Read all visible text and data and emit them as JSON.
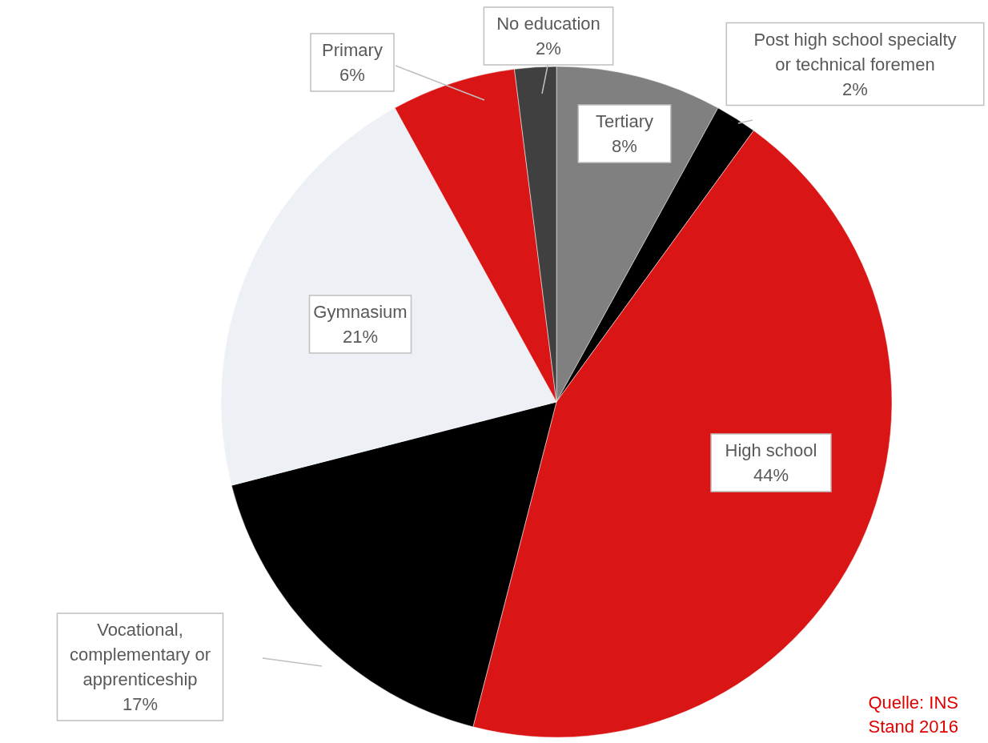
{
  "chart_data": {
    "type": "pie",
    "categories": [
      "Tertiary",
      "Post high school specialty or technical foremen",
      "High school",
      "Vocational, complementary or apprenticeship",
      "Gymnasium",
      "Primary",
      "No education"
    ],
    "values": [
      8,
      2,
      44,
      17,
      21,
      6,
      2
    ],
    "value_labels": [
      "8%",
      "2%",
      "44%",
      "17%",
      "21%",
      "6%",
      "2%"
    ],
    "colors": [
      "#808080",
      "#000000",
      "#da1515",
      "#000000",
      "#edf1f5",
      "#da1515",
      "#404040"
    ],
    "annotations": [
      "Quelle: INS",
      "Stand 2016"
    ]
  }
}
